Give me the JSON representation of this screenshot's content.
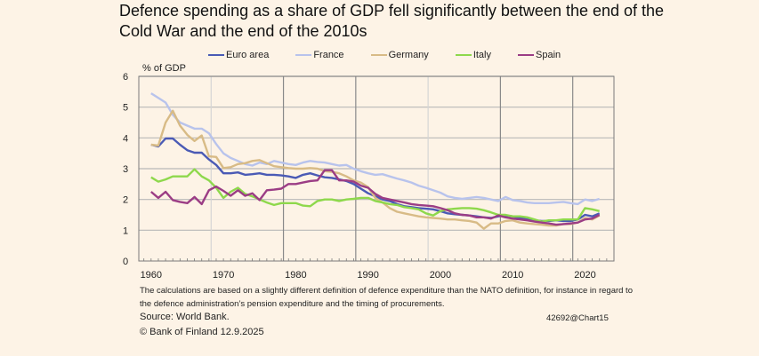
{
  "chart_data": {
    "type": "line",
    "title": "Defence spending as a share of GDP fell significantly between the end of the Cold War and the end of the 2010s",
    "ylabel": "% of GDP",
    "xlabel": "",
    "ylim": [
      0,
      6
    ],
    "xlim": [
      1958.3,
      2024
    ],
    "yticks": [
      "0",
      "1",
      "2",
      "3",
      "4",
      "5",
      "6"
    ],
    "xticks": [
      "1960",
      "1970",
      "1980",
      "1990",
      "2000",
      "2010",
      "2020"
    ],
    "grid": true,
    "legend_position": "top",
    "x": [
      1960,
      1961,
      1962,
      1963,
      1964,
      1965,
      1966,
      1967,
      1968,
      1969,
      1970,
      1971,
      1972,
      1973,
      1974,
      1975,
      1976,
      1977,
      1978,
      1979,
      1980,
      1981,
      1982,
      1983,
      1984,
      1985,
      1986,
      1987,
      1988,
      1989,
      1990,
      1991,
      1992,
      1993,
      1994,
      1995,
      1996,
      1997,
      1998,
      1999,
      2000,
      2001,
      2002,
      2003,
      2004,
      2005,
      2006,
      2007,
      2008,
      2009,
      2010,
      2011,
      2012,
      2013,
      2014,
      2015,
      2016,
      2017,
      2018,
      2019,
      2020,
      2021,
      2022
    ],
    "series": [
      {
        "name": "Euro area",
        "color": "#4a5ab5",
        "values": [
          3.78,
          3.72,
          3.98,
          3.98,
          3.78,
          3.6,
          3.52,
          3.52,
          3.3,
          3.12,
          2.85,
          2.85,
          2.88,
          2.8,
          2.82,
          2.85,
          2.8,
          2.8,
          2.78,
          2.75,
          2.7,
          2.8,
          2.85,
          2.78,
          2.72,
          2.7,
          2.65,
          2.6,
          2.5,
          2.35,
          2.2,
          2.1,
          2.0,
          1.95,
          1.85,
          1.78,
          1.75,
          1.72,
          1.7,
          1.68,
          1.62,
          1.55,
          1.52,
          1.5,
          1.48,
          1.45,
          1.42,
          1.4,
          1.45,
          1.48,
          1.45,
          1.4,
          1.35,
          1.32,
          1.3,
          1.3,
          1.32,
          1.3,
          1.3,
          1.35,
          1.5,
          1.45,
          1.55
        ]
      },
      {
        "name": "France",
        "color": "#b8c3ec",
        "values": [
          5.45,
          5.3,
          5.15,
          4.75,
          4.5,
          4.4,
          4.3,
          4.3,
          4.15,
          3.8,
          3.5,
          3.35,
          3.25,
          3.15,
          3.1,
          3.2,
          3.15,
          3.25,
          3.2,
          3.15,
          3.12,
          3.2,
          3.25,
          3.22,
          3.2,
          3.15,
          3.1,
          3.12,
          3.0,
          2.92,
          2.85,
          2.8,
          2.82,
          2.75,
          2.68,
          2.62,
          2.55,
          2.45,
          2.38,
          2.3,
          2.22,
          2.1,
          2.05,
          2.02,
          2.05,
          2.08,
          2.05,
          2.0,
          1.95,
          2.08,
          1.98,
          1.95,
          1.9,
          1.88,
          1.88,
          1.88,
          1.9,
          1.92,
          1.88,
          1.85,
          2.0,
          1.95,
          2.02
        ]
      },
      {
        "name": "Germany",
        "color": "#d8bb86",
        "values": [
          3.78,
          3.75,
          4.5,
          4.88,
          4.4,
          4.1,
          3.9,
          4.08,
          3.4,
          3.38,
          3.02,
          3.05,
          3.15,
          3.18,
          3.25,
          3.28,
          3.18,
          3.08,
          3.05,
          3.02,
          3.0,
          3.0,
          3.02,
          3.0,
          2.92,
          2.9,
          2.85,
          2.75,
          2.62,
          2.55,
          2.4,
          2.05,
          1.9,
          1.72,
          1.6,
          1.55,
          1.5,
          1.45,
          1.42,
          1.4,
          1.38,
          1.35,
          1.35,
          1.32,
          1.3,
          1.25,
          1.05,
          1.22,
          1.22,
          1.3,
          1.32,
          1.25,
          1.22,
          1.2,
          1.18,
          1.15,
          1.15,
          1.2,
          1.2,
          1.25,
          1.4,
          1.35,
          1.48
        ]
      },
      {
        "name": "Italy",
        "color": "#8ed84c",
        "values": [
          2.72,
          2.58,
          2.65,
          2.75,
          2.75,
          2.75,
          2.98,
          2.75,
          2.62,
          2.38,
          2.05,
          2.25,
          2.38,
          2.18,
          2.1,
          2.0,
          1.9,
          1.82,
          1.88,
          1.88,
          1.88,
          1.8,
          1.78,
          1.95,
          2.0,
          2.0,
          1.95,
          2.0,
          2.02,
          2.05,
          2.05,
          1.95,
          1.9,
          1.85,
          1.82,
          1.75,
          1.72,
          1.68,
          1.55,
          1.48,
          1.62,
          1.68,
          1.7,
          1.72,
          1.72,
          1.7,
          1.65,
          1.58,
          1.5,
          1.5,
          1.45,
          1.45,
          1.42,
          1.35,
          1.28,
          1.32,
          1.32,
          1.35,
          1.35,
          1.35,
          1.72,
          1.68,
          1.62
        ]
      },
      {
        "name": "Spain",
        "color": "#9b3d85",
        "values": [
          2.25,
          2.05,
          2.25,
          1.98,
          1.92,
          1.88,
          2.08,
          1.85,
          2.3,
          2.42,
          2.28,
          2.12,
          2.3,
          2.12,
          2.2,
          1.98,
          2.3,
          2.32,
          2.35,
          2.5,
          2.5,
          2.55,
          2.6,
          2.62,
          2.95,
          2.95,
          2.62,
          2.62,
          2.58,
          2.45,
          2.38,
          2.18,
          2.05,
          2.0,
          1.95,
          1.9,
          1.85,
          1.82,
          1.8,
          1.78,
          1.72,
          1.65,
          1.55,
          1.5,
          1.48,
          1.42,
          1.42,
          1.38,
          1.48,
          1.42,
          1.38,
          1.35,
          1.32,
          1.28,
          1.25,
          1.22,
          1.18,
          1.2,
          1.22,
          1.25,
          1.35,
          1.38,
          1.5
        ]
      }
    ],
    "annotations": []
  },
  "title": "Defence spending as a share of GDP fell significantly between the end of the Cold War and the end of the 2010s",
  "legend": [
    {
      "label": "Euro area",
      "color": "#4a5ab5"
    },
    {
      "label": "France",
      "color": "#b8c3ec"
    },
    {
      "label": "Germany",
      "color": "#d8bb86"
    },
    {
      "label": "Italy",
      "color": "#8ed84c"
    },
    {
      "label": "Spain",
      "color": "#9b3d85"
    }
  ],
  "y_axis_label": "% of GDP",
  "note": "The calculations are based on a slightly different definition of defence expenditure than the NATO definition, for instance in regard to the defence administration’s pension expenditure and the timing of procurements.",
  "source": "Source: World Bank.",
  "chart_id": "42692@Chart15",
  "copyright": "© Bank of Finland 12.9.2025",
  "colors": {
    "background": "#fdf3e6",
    "grid": "#b5b5b5",
    "grid_dark": "#8a8a8a"
  }
}
